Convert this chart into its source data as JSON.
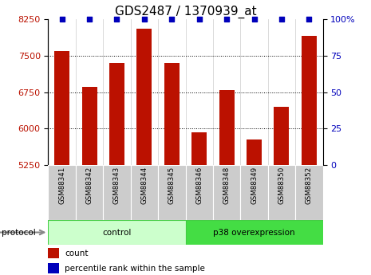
{
  "title": "GDS2487 / 1370939_at",
  "categories": [
    "GSM88341",
    "GSM88342",
    "GSM88343",
    "GSM88344",
    "GSM88345",
    "GSM88346",
    "GSM88348",
    "GSM88349",
    "GSM88350",
    "GSM88352"
  ],
  "counts": [
    7600,
    6850,
    7350,
    8050,
    7350,
    5920,
    6800,
    5780,
    6450,
    7900
  ],
  "percentile_ranks": [
    100,
    100,
    100,
    100,
    100,
    100,
    100,
    100,
    100,
    100
  ],
  "ylim_left": [
    5250,
    8250
  ],
  "yticks_left": [
    5250,
    6000,
    6750,
    7500,
    8250
  ],
  "ylim_right": [
    0,
    100
  ],
  "yticks_right": [
    0,
    25,
    50,
    75,
    100
  ],
  "bar_color": "#bb1100",
  "percentile_color": "#0000bb",
  "groups": [
    {
      "label": "control",
      "start": 0,
      "end": 5,
      "color": "#ccffcc",
      "border_color": "#44cc44"
    },
    {
      "label": "p38 overexpression",
      "start": 5,
      "end": 10,
      "color": "#44dd44",
      "border_color": "#44cc44"
    }
  ],
  "protocol_label": "protocol",
  "legend_count_label": "count",
  "legend_percentile_label": "percentile rank within the sample",
  "background_color": "#ffffff",
  "tick_label_bg": "#cccccc",
  "title_fontsize": 11,
  "axis_fontsize": 8,
  "bar_width": 0.55
}
